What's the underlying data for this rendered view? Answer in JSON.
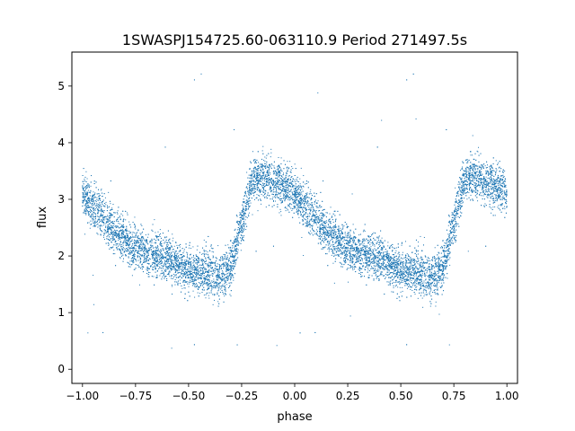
{
  "chart_data": {
    "type": "scatter",
    "title": "1SWASPJ154725.60-063110.9 Period 271497.5s",
    "xlabel": "phase",
    "ylabel": "flux",
    "xlim": [
      -1.05,
      1.05
    ],
    "ylim": [
      -0.25,
      5.6
    ],
    "x_ticks": [
      -1.0,
      -0.75,
      -0.5,
      -0.25,
      0.0,
      0.25,
      0.5,
      0.75,
      1.0
    ],
    "x_tick_labels": [
      "−1.00",
      "−0.75",
      "−0.50",
      "−0.25",
      "0.00",
      "0.25",
      "0.50",
      "0.75",
      "1.00"
    ],
    "y_ticks": [
      0,
      1,
      2,
      3,
      4,
      5
    ],
    "y_tick_labels": [
      "0",
      "1",
      "2",
      "3",
      "4",
      "5"
    ],
    "grid": false,
    "marker_color": "#1f77b4",
    "series": [
      {
        "profile_phase": [
          0.0,
          0.05,
          0.1,
          0.15,
          0.2,
          0.25,
          0.3,
          0.35,
          0.4,
          0.45,
          0.5,
          0.55,
          0.6,
          0.65,
          0.7,
          0.75,
          0.8,
          0.85,
          0.9,
          0.95,
          1.0
        ],
        "profile_flux": [
          3.1,
          2.9,
          2.65,
          2.45,
          2.3,
          2.15,
          2.05,
          2.0,
          1.95,
          1.85,
          1.75,
          1.7,
          1.65,
          1.65,
          1.8,
          2.6,
          3.35,
          3.4,
          3.3,
          3.2,
          3.1
        ],
        "scatter_width": 0.35,
        "points_per_cycle": 6000
      }
    ]
  }
}
